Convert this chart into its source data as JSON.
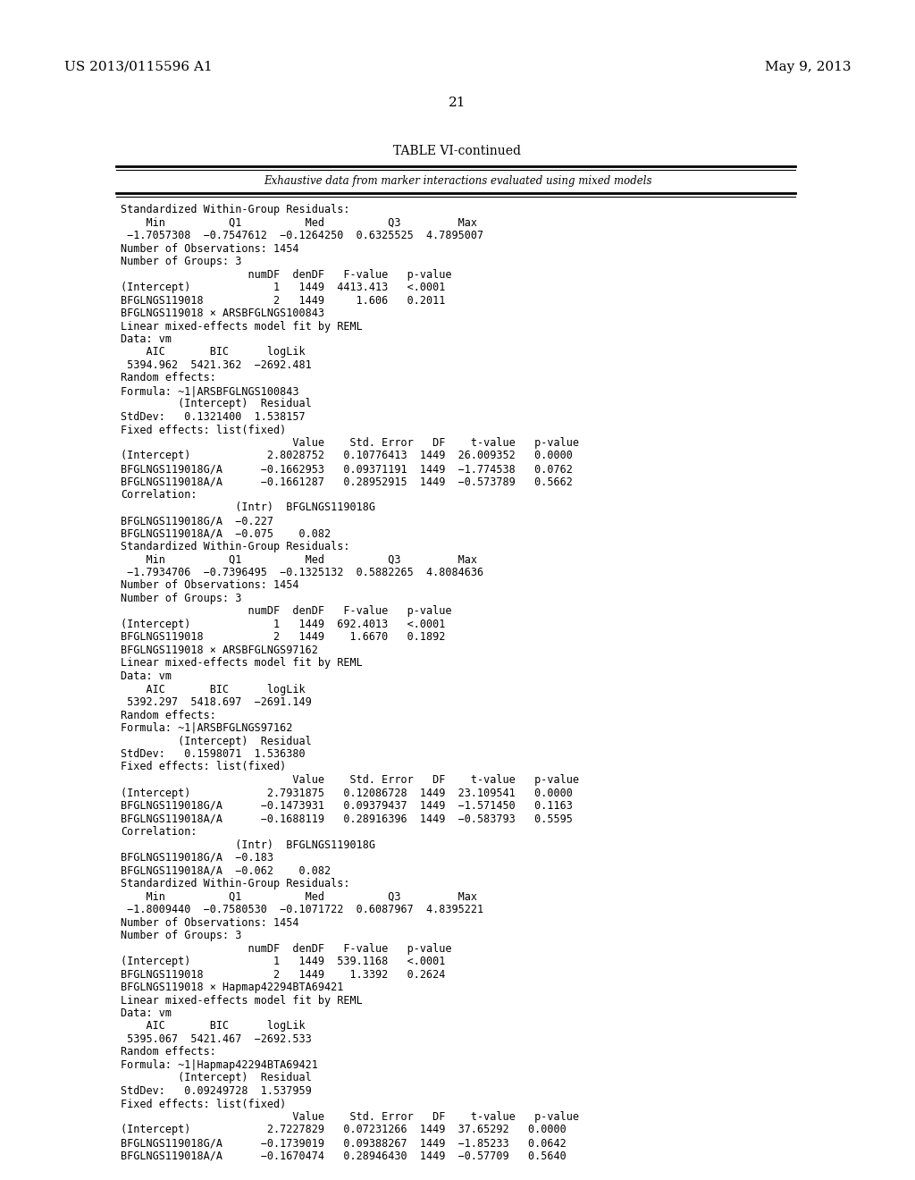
{
  "header_left": "US 2013/0115596 A1",
  "header_right": "May 9, 2013",
  "page_number": "21",
  "table_title": "TABLE VI-continued",
  "table_subtitle": "Exhaustive data from marker interactions evaluated using mixed models",
  "background_color": "#ffffff",
  "text_color": "#000000",
  "content": [
    "Standardized Within-Group Residuals:",
    "    Min          Q1          Med          Q3         Max",
    " −1.7057308  −0.7547612  −0.1264250  0.6325525  4.7895007",
    "Number of Observations: 1454",
    "Number of Groups: 3",
    "                    numDF  denDF   F-value   p-value",
    "(Intercept)             1   1449  4413.413   <.0001",
    "BFGLNGS119018           2   1449     1.606   0.2011",
    "BFGLNGS119018 × ARSBFGLNGS100843",
    "Linear mixed-effects model fit by REML",
    "Data: vm",
    "    AIC       BIC      logLik",
    " 5394.962  5421.362  −2692.481",
    "Random effects:",
    "Formula: ~1|ARSBFGLNGS100843",
    "         (Intercept)  Residual",
    "StdDev:   0.1321400  1.538157",
    "Fixed effects: list(fixed)",
    "                           Value    Std. Error   DF    t-value   p-value",
    "(Intercept)            2.8028752   0.10776413  1449  26.009352   0.0000",
    "BFGLNGS119018G/A      −0.1662953   0.09371191  1449  −1.774538   0.0762",
    "BFGLNGS119018A/A      −0.1661287   0.28952915  1449  −0.573789   0.5662",
    "Correlation:",
    "                  (Intr)  BFGLNGS119018G",
    "BFGLNGS119018G/A  −0.227",
    "BFGLNGS119018A/A  −0.075    0.082",
    "Standardized Within-Group Residuals:",
    "    Min          Q1          Med          Q3         Max",
    " −1.7934706  −0.7396495  −0.1325132  0.5882265  4.8084636",
    "Number of Observations: 1454",
    "Number of Groups: 3",
    "                    numDF  denDF   F-value   p-value",
    "(Intercept)             1   1449  692.4013   <.0001",
    "BFGLNGS119018           2   1449    1.6670   0.1892",
    "BFGLNGS119018 × ARSBFGLNGS97162",
    "Linear mixed-effects model fit by REML",
    "Data: vm",
    "    AIC       BIC      logLik",
    " 5392.297  5418.697  −2691.149",
    "Random effects:",
    "Formula: ~1|ARSBFGLNGS97162",
    "         (Intercept)  Residual",
    "StdDev:   0.1598071  1.536380",
    "Fixed effects: list(fixed)",
    "                           Value    Std. Error   DF    t-value   p-value",
    "(Intercept)            2.7931875   0.12086728  1449  23.109541   0.0000",
    "BFGLNGS119018G/A      −0.1473931   0.09379437  1449  −1.571450   0.1163",
    "BFGLNGS119018A/A      −0.1688119   0.28916396  1449  −0.583793   0.5595",
    "Correlation:",
    "                  (Intr)  BFGLNGS119018G",
    "BFGLNGS119018G/A  −0.183",
    "BFGLNGS119018A/A  −0.062    0.082",
    "Standardized Within-Group Residuals:",
    "    Min          Q1          Med          Q3         Max",
    " −1.8009440  −0.7580530  −0.1071722  0.6087967  4.8395221",
    "Number of Observations: 1454",
    "Number of Groups: 3",
    "                    numDF  denDF   F-value   p-value",
    "(Intercept)             1   1449  539.1168   <.0001",
    "BFGLNGS119018           2   1449    1.3392   0.2624",
    "BFGLNGS119018 × Hapmap42294BTA69421",
    "Linear mixed-effects model fit by REML",
    "Data: vm",
    "    AIC       BIC      logLik",
    " 5395.067  5421.467  −2692.533",
    "Random effects:",
    "Formula: ~1|Hapmap42294BTA69421",
    "         (Intercept)  Residual",
    "StdDev:   0.09249728  1.537959",
    "Fixed effects: list(fixed)",
    "                           Value    Std. Error   DF    t-value   p-value",
    "(Intercept)            2.7227829   0.07231266  1449  37.65292   0.0000",
    "BFGLNGS119018G/A      −0.1739019   0.09388267  1449  −1.85233   0.0642",
    "BFGLNGS119018A/A      −0.1670474   0.28946430  1449  −0.57709   0.5640"
  ]
}
